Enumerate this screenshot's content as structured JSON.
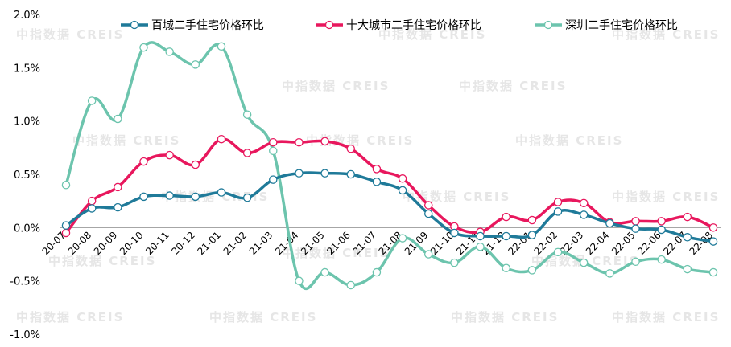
{
  "chart_data": {
    "type": "line",
    "title": "",
    "xlabel": "",
    "ylabel": "",
    "categories": [
      "20-07",
      "20-08",
      "20-09",
      "20-10",
      "20-11",
      "20-12",
      "21-01",
      "21-02",
      "21-03",
      "21-04",
      "21-05",
      "21-06",
      "21-07",
      "21-08",
      "21-09",
      "21-10",
      "21-11",
      "21-12",
      "22-01",
      "22-02",
      "22-03",
      "22-04",
      "22-05",
      "22-06",
      "22-07",
      "22-08"
    ],
    "ylim": [
      -1.0,
      2.0
    ],
    "yticks": [
      "2.0%",
      "1.5%",
      "1.0%",
      "0.5%",
      "0.0%",
      "-0.5%",
      "-1.0%"
    ],
    "ytick_values": [
      2.0,
      1.5,
      1.0,
      0.5,
      0.0,
      -0.5,
      -1.0
    ],
    "grid": false,
    "legend_position": "top",
    "series": [
      {
        "name": "百城二手住宅价格环比",
        "color": "#1f7a99",
        "values": [
          0.02,
          0.18,
          0.19,
          0.29,
          0.3,
          0.29,
          0.33,
          0.28,
          0.45,
          0.51,
          0.51,
          0.5,
          0.43,
          0.35,
          0.13,
          -0.05,
          -0.08,
          -0.08,
          -0.07,
          0.15,
          0.12,
          0.04,
          -0.01,
          -0.02,
          -0.09,
          -0.13
        ]
      },
      {
        "name": "十大城市二手住宅价格环比",
        "color": "#e8175d",
        "values": [
          -0.05,
          0.25,
          0.38,
          0.62,
          0.68,
          0.59,
          0.83,
          0.7,
          0.8,
          0.8,
          0.81,
          0.74,
          0.55,
          0.46,
          0.21,
          0.01,
          -0.04,
          0.1,
          0.07,
          0.24,
          0.23,
          0.05,
          0.06,
          0.06,
          0.1,
          0.0
        ]
      },
      {
        "name": "深圳二手住宅价格环比",
        "color": "#6cc4ad",
        "values": [
          0.4,
          1.19,
          1.02,
          1.69,
          1.65,
          1.53,
          1.7,
          1.06,
          0.72,
          -0.5,
          -0.42,
          -0.54,
          -0.42,
          -0.1,
          -0.25,
          -0.33,
          -0.18,
          -0.38,
          -0.4,
          -0.23,
          -0.33,
          -0.43,
          -0.32,
          -0.3,
          -0.39,
          -0.42
        ]
      }
    ]
  },
  "watermark": {
    "text": "中指数据 CREIS"
  }
}
